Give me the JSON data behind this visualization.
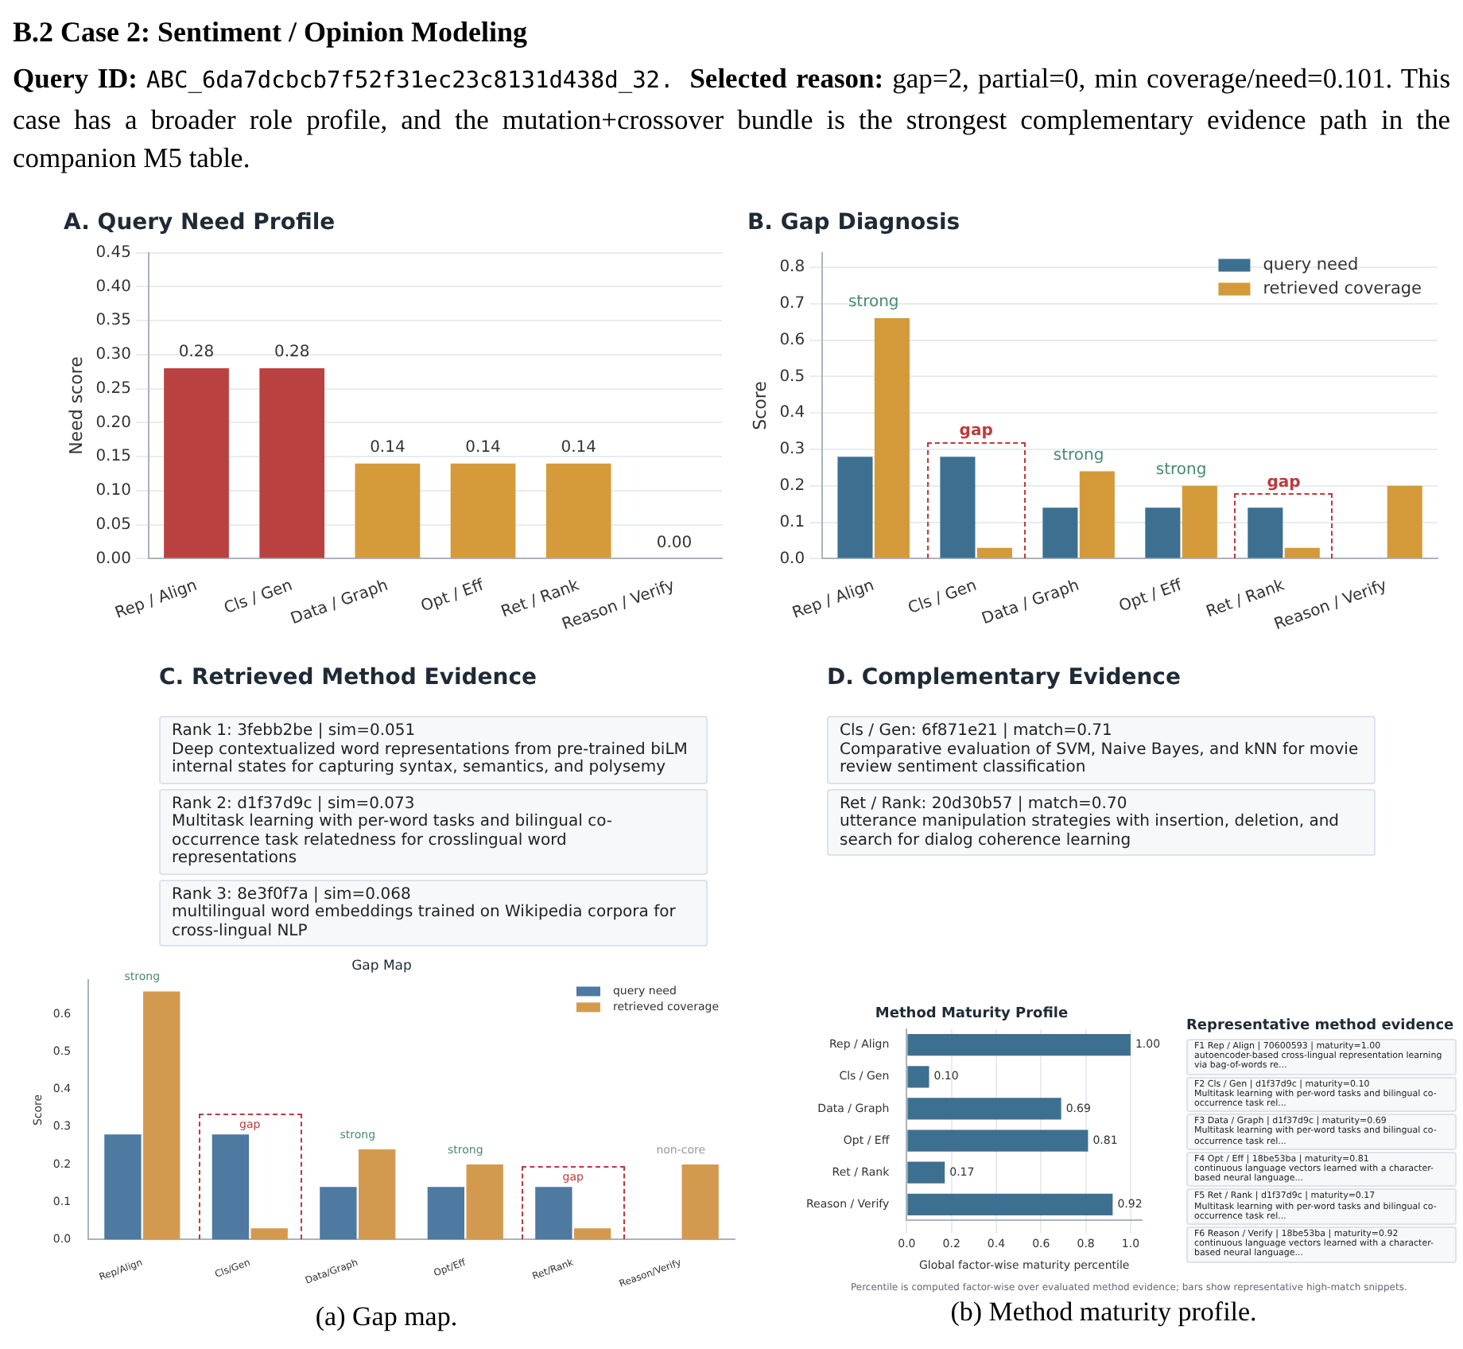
{
  "chart_data": [
    {
      "type": "other",
      "title": "B.2 Case 2: Sentiment / Opinion Modeling",
      "annotations": [
        "Query ID:",
        "ABC_6da7dcbcb7f52f31ec23c8131d438d_32.",
        "Selected reason:",
        "gap=2, partial=0, min coverage/need=0.101. This case has a broader role profile, and the mutation+crossover bundle is the strongest complementary evidence path in the companion M5 table."
      ]
    },
    {
      "type": "bar",
      "title": "A. Query Need Profile",
      "ylabel": "Need score",
      "categories": [
        "Rep / Align",
        "Cls / Gen",
        "Data / Graph",
        "Opt / Eff",
        "Ret / Rank",
        "Reason / Verify"
      ],
      "values": [
        0.28,
        0.28,
        0.14,
        0.14,
        0.14,
        0
      ],
      "value_labels": [
        "0.28",
        "0.28",
        "0.14",
        "0.14",
        "0.14",
        "0.00"
      ],
      "colors": [
        "#b94240",
        "#b94240",
        "#d59b3a",
        "#d59b3a",
        "#d59b3a",
        "#d59b3a"
      ],
      "ylim": [
        0,
        0.45
      ],
      "yticks": [
        {
          "value": 0,
          "label": "0.00"
        },
        {
          "value": 0.05,
          "label": "0.05"
        },
        {
          "value": 0.1,
          "label": "0.10"
        },
        {
          "value": 0.15,
          "label": "0.15"
        },
        {
          "value": 0.2,
          "label": "0.20"
        },
        {
          "value": 0.25,
          "label": "0.25"
        },
        {
          "value": 0.3,
          "label": "0.30"
        },
        {
          "value": 0.35,
          "label": "0.35"
        },
        {
          "value": 0.4,
          "label": "0.40"
        },
        {
          "value": 0.45,
          "label": "0.45"
        }
      ],
      "grid": "y"
    },
    {
      "type": "bar",
      "title": "B. Gap Diagnosis",
      "ylabel": "Score",
      "categories": [
        "Rep / Align",
        "Cls / Gen",
        "Data / Graph",
        "Opt / Eff",
        "Ret / Rank",
        "Reason / Verify"
      ],
      "series": [
        {
          "name": "query need",
          "color": "#3d7090",
          "values": [
            0.28,
            0.28,
            0.14,
            0.14,
            0.14,
            0
          ]
        },
        {
          "name": "retrieved coverage",
          "color": "#d49a3a",
          "values": [
            0.66,
            0.03,
            0.24,
            0.2,
            0.03,
            0.2
          ]
        }
      ],
      "ylim": [
        0,
        0.84
      ],
      "yticks": [
        {
          "value": 0,
          "label": "0.0"
        },
        {
          "value": 0.1,
          "label": "0.1"
        },
        {
          "value": 0.2,
          "label": "0.2"
        },
        {
          "value": 0.3,
          "label": "0.3"
        },
        {
          "value": 0.4,
          "label": "0.4"
        },
        {
          "value": 0.5,
          "label": "0.5"
        },
        {
          "value": 0.6,
          "label": "0.6"
        },
        {
          "value": 0.7,
          "label": "0.7"
        },
        {
          "value": 0.8,
          "label": "0.8"
        }
      ],
      "grid": "y",
      "legend": "top right",
      "annotations": [
        {
          "text": "strong",
          "x": "Rep / Align",
          "y": 0.66
        },
        {
          "text": "gap",
          "x": "Cls / Gen",
          "y": 0.28
        },
        {
          "text": "strong",
          "x": "Data / Graph",
          "y": 0.24
        },
        {
          "text": "strong",
          "x": "Opt / Eff",
          "y": 0.2
        },
        {
          "text": "gap",
          "x": "Ret / Rank",
          "y": 0.14
        }
      ]
    },
    {
      "type": "other",
      "title": "C. Retrieved Method Evidence",
      "annotations": [
        "Rank 1: 3febb2be | sim=0.051",
        "Deep contextualized word representations from pre-trained biLM internal states for capturing syntax, semantics, and polysemy",
        "Rank 2: d1f37d9c | sim=0.073",
        "Multitask learning with per-word tasks and bilingual co-occurrence task relatedness for crosslingual word representations",
        "Rank 3: 8e3f0f7a | sim=0.068",
        "multilingual word embeddings trained on Wikipedia corpora for cross-lingual NLP"
      ]
    },
    {
      "type": "other",
      "title": "D. Complementary Evidence",
      "annotations": [
        "Cls / Gen: 6f871e21 | match=0.71",
        "Comparative evaluation of SVM, Naive Bayes, and kNN for movie review sentiment classification",
        "Ret / Rank: 20d30b57 | match=0.70",
        "utterance manipulation strategies with insertion, deletion, and search for dialog coherence learning"
      ]
    },
    {
      "type": "bar",
      "title": "Gap Map",
      "ylabel": "Score",
      "categories": [
        "Rep/Align",
        "Cls/Gen",
        "Data/Graph",
        "Opt/Eff",
        "Ret/Rank",
        "Reason/Verify"
      ],
      "series": [
        {
          "name": "query need",
          "color": "#4e79a0",
          "values": [
            0.28,
            0.28,
            0.14,
            0.14,
            0.14,
            0
          ]
        },
        {
          "name": "retrieved coverage",
          "color": "#d39a4f",
          "values": [
            0.66,
            0.03,
            0.24,
            0.2,
            0.03,
            0.2
          ]
        }
      ],
      "ylim": [
        0,
        0.69
      ],
      "yticks": [
        {
          "value": 0,
          "label": "0.0"
        },
        {
          "value": 0.1,
          "label": "0.1"
        },
        {
          "value": 0.2,
          "label": "0.2"
        },
        {
          "value": 0.3,
          "label": "0.3"
        },
        {
          "value": 0.4,
          "label": "0.4"
        },
        {
          "value": 0.5,
          "label": "0.5"
        },
        {
          "value": 0.6,
          "label": "0.6"
        }
      ],
      "legend": "top right",
      "annotations": [
        {
          "text": "strong",
          "x": "Rep/Align",
          "y": 0.66
        },
        {
          "text": "gap",
          "x": "Cls/Gen",
          "y": 0.28
        },
        {
          "text": "strong",
          "x": "Data/Graph",
          "y": 0.24
        },
        {
          "text": "strong",
          "x": "Opt/Eff",
          "y": 0.2
        },
        {
          "text": "gap",
          "x": "Ret/Rank",
          "y": 0.14
        },
        {
          "text": "non-core",
          "x": "Reason/Verify",
          "y": 0.2
        },
        "(a) Gap map."
      ]
    },
    {
      "type": "bar",
      "orientation": "horizontal",
      "title": "Method Maturity Profile",
      "xlabel": "Global factor-wise maturity percentile",
      "categories": [
        "Rep / Align",
        "Cls / Gen",
        "Data / Graph",
        "Opt / Eff",
        "Ret / Rank",
        "Reason / Verify"
      ],
      "values": [
        1,
        0.1,
        0.69,
        0.81,
        0.17,
        0.92
      ],
      "value_labels": [
        "1.00",
        "0.10",
        "0.69",
        "0.81",
        "0.17",
        "0.92"
      ],
      "color": "#3d7090",
      "xlim": [
        0,
        1.05
      ],
      "xticks": [
        {
          "value": 0,
          "label": "0.0"
        },
        {
          "value": 0.2,
          "label": "0.2"
        },
        {
          "value": 0.4,
          "label": "0.4"
        },
        {
          "value": 0.6,
          "label": "0.6"
        },
        {
          "value": 0.8,
          "label": "0.8"
        },
        {
          "value": 1,
          "label": "1.0"
        }
      ],
      "grid": "x",
      "annotations": [
        "Percentile is computed factor-wise over evaluated method evidence; bars show representative high-match snippets.",
        "(b) Method maturity profile."
      ]
    },
    {
      "type": "other",
      "title": "Representative method evidence",
      "annotations": [
        "F1 Rep / Align | 70600593 | maturity=1.00",
        "autoencoder-based cross-lingual representation learning via bag-of-words re...",
        "F2 Cls / Gen | d1f37d9c | maturity=0.10",
        "Multitask learning with per-word tasks and bilingual co-occurrence task rel...",
        "F3 Data / Graph | d1f37d9c | maturity=0.69",
        "Multitask learning with per-word tasks and bilingual co-occurrence task rel...",
        "F4 Opt / Eff | 18be53ba | maturity=0.81",
        "continuous language vectors learned with a character-based neural language...",
        "F5 Ret / Rank | d1f37d9c | maturity=0.17",
        "Multitask learning with per-word tasks and bilingual co-occurrence task rel...",
        "F6 Reason / Verify | 18be53ba | maturity=0.92",
        "continuous language vectors learned with a character-based neural language..."
      ]
    }
  ]
}
